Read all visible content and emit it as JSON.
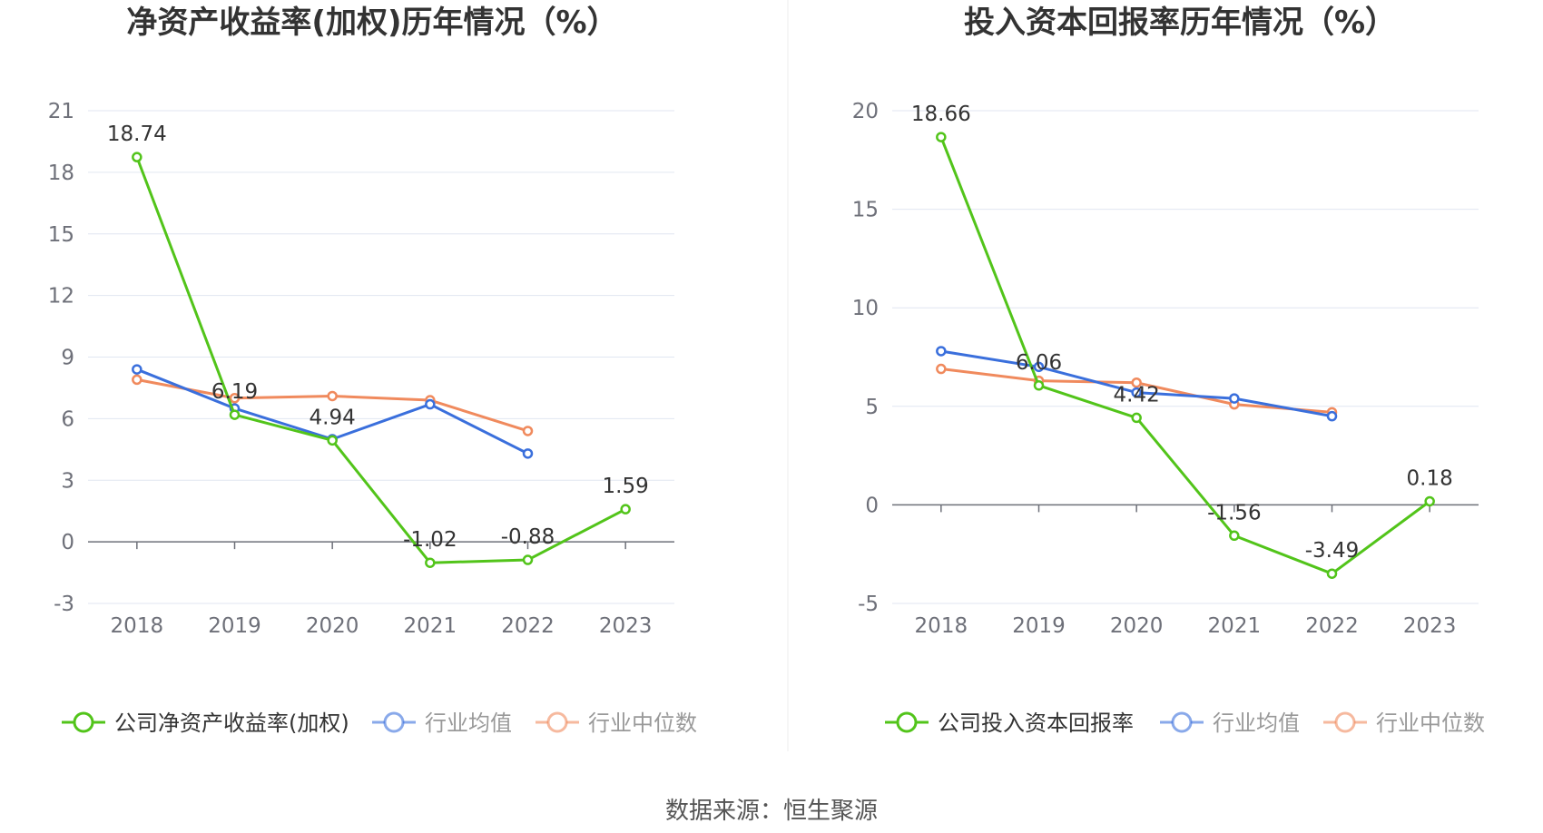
{
  "footer": {
    "source": "数据来源：恒生聚源"
  },
  "colors": {
    "company": "#52c41a",
    "average": "#3a6fdc",
    "median": "#f08a5d",
    "grid": "#e0e6f1",
    "axis": "#6e7079"
  },
  "chart_data": [
    {
      "type": "line",
      "title": "净资产收益率(加权)历年情况（%）",
      "categories": [
        "2018",
        "2019",
        "2020",
        "2021",
        "2022",
        "2023"
      ],
      "ylim": [
        -3,
        21
      ],
      "yticks": [
        -3,
        0,
        3,
        6,
        9,
        12,
        15,
        18,
        21
      ],
      "grid": true,
      "legend_position": "bottom",
      "series": [
        {
          "name": "公司净资产收益率(加权)",
          "values": [
            18.74,
            6.19,
            4.94,
            -1.02,
            -0.88,
            1.59
          ],
          "labels": [
            "18.74",
            "6.19",
            "4.94",
            "-1.02",
            "-0.88",
            "1.59"
          ]
        },
        {
          "name": "行业均值",
          "values": [
            8.4,
            6.5,
            5.0,
            6.7,
            4.3,
            null
          ]
        },
        {
          "name": "行业中位数",
          "values": [
            7.9,
            7.0,
            7.1,
            6.9,
            5.4,
            null
          ]
        }
      ]
    },
    {
      "type": "line",
      "title": "投入资本回报率历年情况（%）",
      "categories": [
        "2018",
        "2019",
        "2020",
        "2021",
        "2022",
        "2023"
      ],
      "ylim": [
        -5,
        20
      ],
      "yticks": [
        -5,
        0,
        5,
        10,
        15,
        20
      ],
      "grid": true,
      "legend_position": "bottom",
      "series": [
        {
          "name": "公司投入资本回报率",
          "values": [
            18.66,
            6.06,
            4.42,
            -1.56,
            -3.49,
            0.18
          ],
          "labels": [
            "18.66",
            "6.06",
            "4.42",
            "-1.56",
            "-3.49",
            "0.18"
          ]
        },
        {
          "name": "行业均值",
          "values": [
            7.8,
            7.0,
            5.7,
            5.4,
            4.5,
            null
          ]
        },
        {
          "name": "行业中位数",
          "values": [
            6.9,
            6.3,
            6.2,
            5.1,
            4.7,
            null
          ]
        }
      ]
    }
  ]
}
